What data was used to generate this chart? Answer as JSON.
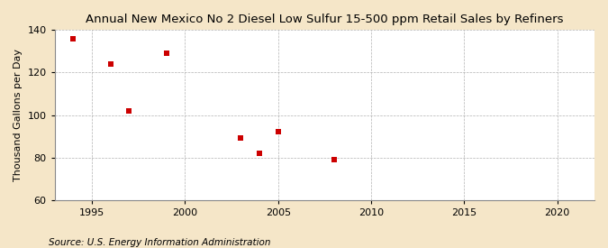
{
  "title": "Annual New Mexico No 2 Diesel Low Sulfur 15-500 ppm Retail Sales by Refiners",
  "ylabel": "Thousand Gallons per Day",
  "source": "Source: U.S. Energy Information Administration",
  "figure_bg_color": "#f5e6c8",
  "plot_bg_color": "#ffffff",
  "x_data": [
    1994,
    1996,
    1997,
    1999,
    2003,
    2004,
    2005,
    2008
  ],
  "y_data": [
    136,
    124,
    102,
    129,
    89,
    82,
    92,
    79
  ],
  "marker_color": "#cc0000",
  "marker": "s",
  "marker_size": 16,
  "xlim": [
    1993,
    2022
  ],
  "ylim": [
    60,
    140
  ],
  "xticks": [
    1995,
    2000,
    2005,
    2010,
    2015,
    2020
  ],
  "yticks": [
    60,
    80,
    100,
    120,
    140
  ],
  "title_fontsize": 9.5,
  "label_fontsize": 8,
  "tick_fontsize": 8,
  "source_fontsize": 7.5
}
